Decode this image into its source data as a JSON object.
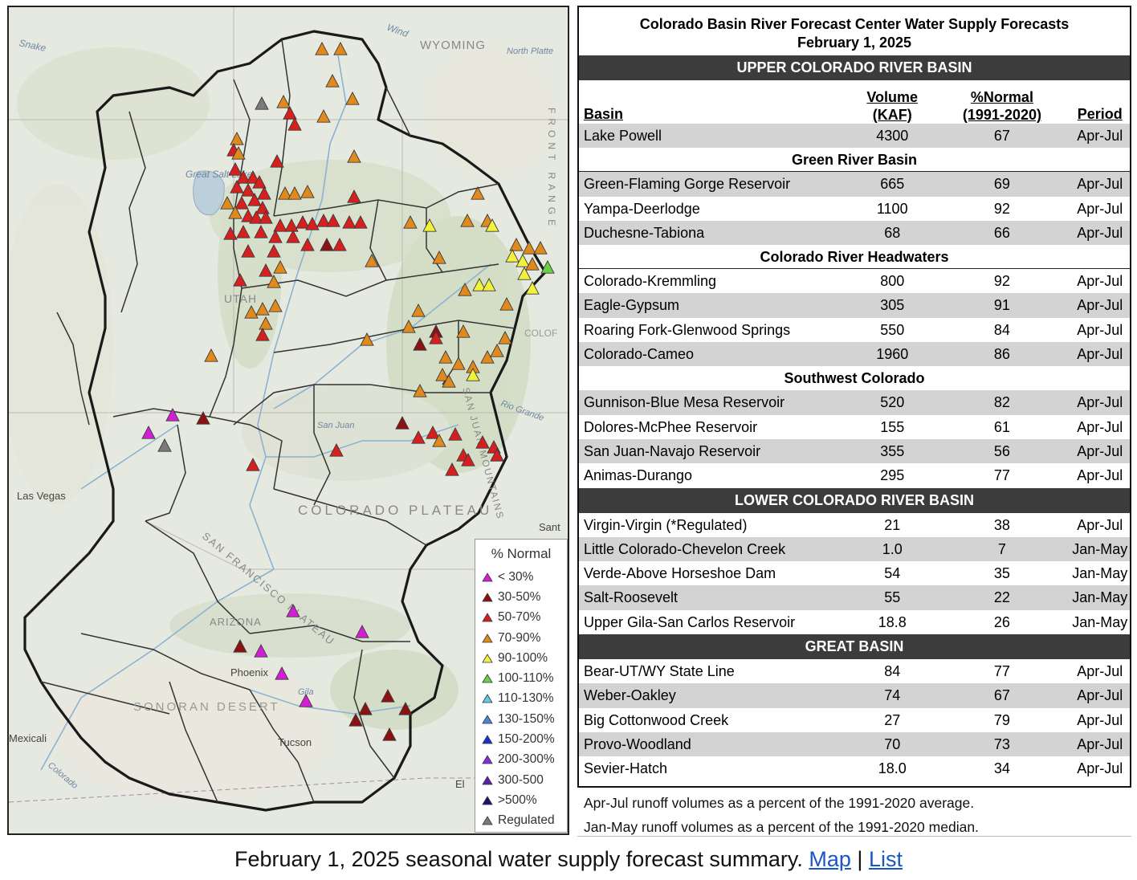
{
  "map": {
    "place_labels": [
      "Snake",
      "Wind",
      "WYOMING",
      "North Platte",
      "Great Salt Lake",
      "UTAH",
      "COLORADO PLATEAU",
      "SAN FRANCISCO PLATEAU",
      "ARIZONA",
      "SONORAN DESERT",
      "Las Vegas",
      "Phoenix",
      "Tucson",
      "Gila",
      "Colorado",
      "San Juan",
      "Rio Grande",
      "SAN JUAN MOUNTAINS",
      "FRONT RANGE",
      "Mexicali",
      "COLOF",
      "Sant",
      "El"
    ],
    "marker_colors": {
      "lt30": "#d21fd6",
      "30_50": "#8b1212",
      "50_70": "#d62020",
      "70_90": "#e08a1e",
      "90_100": "#f2f23a",
      "100_110": "#6cd046",
      "110_130": "#5ec8e8",
      "130_150": "#4a86d8",
      "150_200": "#1c2fd4",
      "200_300": "#8a2be2",
      "300_500": "#5a1fb0",
      "gt500": "#2a0d70",
      "regulated": "#7a7a7a"
    },
    "legend": {
      "title": "% Normal",
      "items": [
        {
          "label": "< 30%",
          "color": "#d21fd6"
        },
        {
          "label": "30-50%",
          "color": "#8b1212"
        },
        {
          "label": "50-70%",
          "color": "#d62020"
        },
        {
          "label": "70-90%",
          "color": "#e08a1e"
        },
        {
          "label": "90-100%",
          "color": "#f2f23a"
        },
        {
          "label": "100-110%",
          "color": "#6cd046"
        },
        {
          "label": "110-130%",
          "color": "#5ec8e8"
        },
        {
          "label": "130-150%",
          "color": "#4a86d8"
        },
        {
          "label": "150-200%",
          "color": "#1c2fd4"
        },
        {
          "label": "200-300%",
          "color": "#8a2be2"
        },
        {
          "label": "300-500",
          "color": "#5a1fb0"
        },
        {
          "label": ">500%",
          "color": "#2a0d70"
        },
        {
          "label": "Regulated",
          "color": "#7a7a7a"
        }
      ]
    }
  },
  "report": {
    "title_line1": "Colorado Basin River Forecast Center Water Supply Forecasts",
    "title_line2": "February 1, 2025",
    "columns": {
      "basin": "Basin",
      "volume_l1": "Volume",
      "volume_l2": "(KAF)",
      "pct_l1": "%Normal",
      "pct_l2": "(1991-2020)",
      "period": "Period"
    },
    "upper_header": "UPPER COLORADO RIVER BASIN",
    "lake_powell": {
      "basin": "Lake Powell",
      "volume": "4300",
      "pct": "67",
      "period": "Apr-Jul"
    },
    "green_header": "Green River Basin",
    "green": [
      {
        "basin": "Green-Flaming Gorge Reservoir",
        "volume": "665",
        "pct": "69",
        "period": "Apr-Jul"
      },
      {
        "basin": "Yampa-Deerlodge",
        "volume": "1100",
        "pct": "92",
        "period": "Apr-Jul"
      },
      {
        "basin": "Duchesne-Tabiona",
        "volume": "68",
        "pct": "66",
        "period": "Apr-Jul"
      }
    ],
    "headwaters_header": "Colorado River Headwaters",
    "headwaters": [
      {
        "basin": "Colorado-Kremmling",
        "volume": "800",
        "pct": "92",
        "period": "Apr-Jul"
      },
      {
        "basin": "Eagle-Gypsum",
        "volume": "305",
        "pct": "91",
        "period": "Apr-Jul"
      },
      {
        "basin": "Roaring Fork-Glenwood Springs",
        "volume": "550",
        "pct": "84",
        "period": "Apr-Jul"
      },
      {
        "basin": "Colorado-Cameo",
        "volume": "1960",
        "pct": "86",
        "period": "Apr-Jul"
      }
    ],
    "southwest_header": "Southwest Colorado",
    "southwest": [
      {
        "basin": "Gunnison-Blue Mesa Reservoir",
        "volume": "520",
        "pct": "82",
        "period": "Apr-Jul"
      },
      {
        "basin": "Dolores-McPhee Reservoir",
        "volume": "155",
        "pct": "61",
        "period": "Apr-Jul"
      },
      {
        "basin": "San Juan-Navajo Reservoir",
        "volume": "355",
        "pct": "56",
        "period": "Apr-Jul"
      },
      {
        "basin": "Animas-Durango",
        "volume": "295",
        "pct": "77",
        "period": "Apr-Jul"
      }
    ],
    "lower_header": "LOWER COLORADO RIVER BASIN",
    "lower": [
      {
        "basin": "Virgin-Virgin (*Regulated)",
        "volume": "21",
        "pct": "38",
        "period": "Apr-Jul"
      },
      {
        "basin": "Little Colorado-Chevelon Creek",
        "volume": "1.0",
        "pct": "7",
        "period": "Jan-May"
      },
      {
        "basin": "Verde-Above Horseshoe Dam",
        "volume": "54",
        "pct": "35",
        "period": "Jan-May"
      },
      {
        "basin": "Salt-Roosevelt",
        "volume": "55",
        "pct": "22",
        "period": "Jan-May"
      },
      {
        "basin": "Upper Gila-San Carlos Reservoir",
        "volume": "18.8",
        "pct": "26",
        "period": "Jan-May"
      }
    ],
    "great_header": "GREAT BASIN",
    "great": [
      {
        "basin": "Bear-UT/WY State Line",
        "volume": "84",
        "pct": "77",
        "period": "Apr-Jul"
      },
      {
        "basin": "Weber-Oakley",
        "volume": "74",
        "pct": "67",
        "period": "Apr-Jul"
      },
      {
        "basin": "Big Cottonwood Creek",
        "volume": "27",
        "pct": "79",
        "period": "Apr-Jul"
      },
      {
        "basin": "Provo-Woodland",
        "volume": "70",
        "pct": "73",
        "period": "Apr-Jul"
      },
      {
        "basin": "Sevier-Hatch",
        "volume": "18.0",
        "pct": "34",
        "period": "Apr-Jul"
      }
    ],
    "note1": "Apr-Jul runoff volumes as a percent of the 1991-2020 average.",
    "note2": "Jan-May runoff volumes as a percent of the 1991-2020 median."
  },
  "caption": {
    "text": "February 1, 2025 seasonal water supply forecast summary.",
    "link_map": "Map",
    "separator": "|",
    "link_list": "List"
  }
}
